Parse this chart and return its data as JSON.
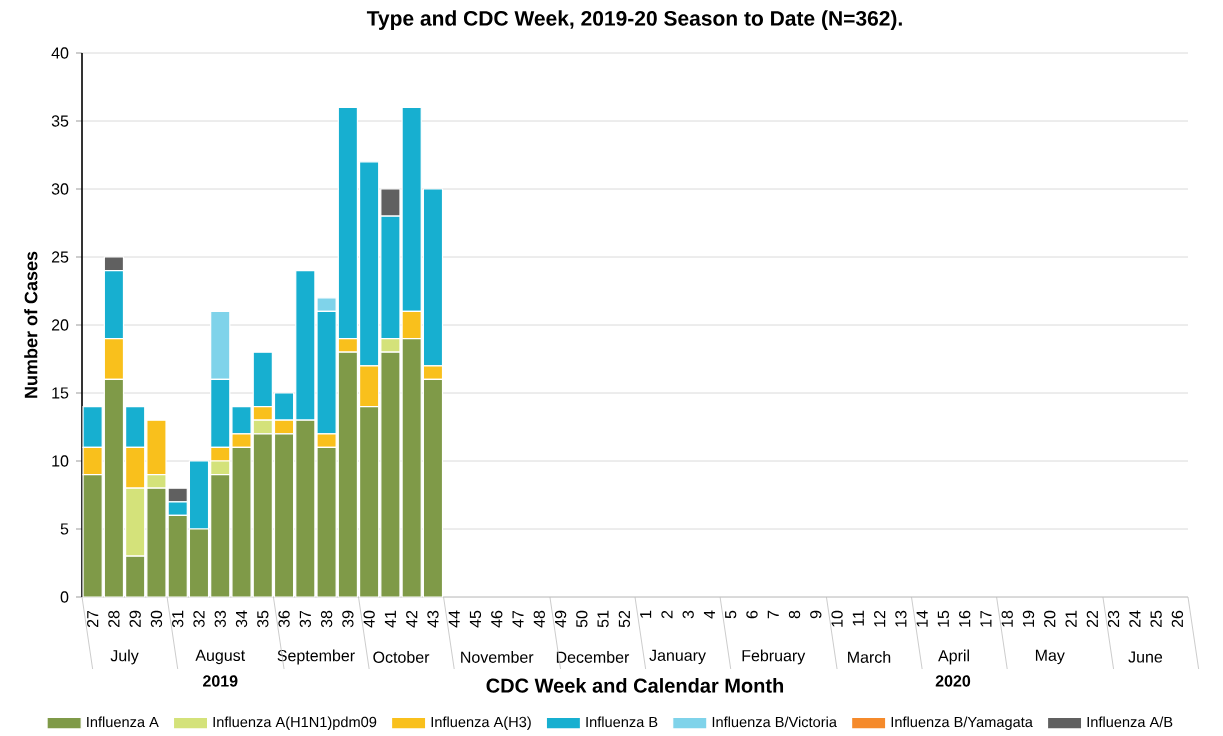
{
  "chart_data": {
    "type": "bar",
    "stacked": true,
    "title": "Type and CDC Week, 2019-20 Season to Date (N=362).",
    "xlabel": "CDC Week and Calendar Month",
    "ylabel": "Number of Cases",
    "categories": [
      "27",
      "28",
      "29",
      "30",
      "31",
      "32",
      "33",
      "34",
      "35",
      "36",
      "37",
      "38",
      "39",
      "40",
      "41",
      "42",
      "43",
      "44",
      "45",
      "46",
      "47",
      "48",
      "49",
      "50",
      "51",
      "52",
      "1",
      "2",
      "3",
      "4",
      "5",
      "6",
      "7",
      "8",
      "9",
      "10",
      "11",
      "12",
      "13",
      "14",
      "15",
      "16",
      "17",
      "18",
      "19",
      "20",
      "21",
      "22",
      "23",
      "24",
      "25",
      "26"
    ],
    "series": [
      {
        "name": "Influenza A",
        "color": "#7f9a48",
        "values": [
          9,
          16,
          3,
          8,
          6,
          5,
          9,
          11,
          12,
          12,
          13,
          11,
          18,
          14,
          18,
          19,
          16,
          null,
          null,
          null,
          null,
          null,
          null,
          null,
          null,
          null,
          null,
          null,
          null,
          null,
          null,
          null,
          null,
          null,
          null,
          null,
          null,
          null,
          null,
          null,
          null,
          null,
          null,
          null,
          null,
          null,
          null,
          null,
          null,
          null,
          null,
          null
        ]
      },
      {
        "name": "Influenza A(H1N1)pdm09",
        "color": "#d4e27a",
        "values": [
          0,
          0,
          5,
          1,
          0,
          0,
          1,
          0,
          1,
          0,
          0,
          0,
          0,
          0,
          1,
          0,
          0,
          null,
          null,
          null,
          null,
          null,
          null,
          null,
          null,
          null,
          null,
          null,
          null,
          null,
          null,
          null,
          null,
          null,
          null,
          null,
          null,
          null,
          null,
          null,
          null,
          null,
          null,
          null,
          null,
          null,
          null,
          null,
          null,
          null,
          null,
          null
        ]
      },
      {
        "name": "Influenza A(H3)",
        "color": "#f9c01c",
        "values": [
          2,
          3,
          3,
          4,
          0,
          0,
          1,
          1,
          1,
          1,
          0,
          1,
          1,
          3,
          0,
          2,
          1,
          null,
          null,
          null,
          null,
          null,
          null,
          null,
          null,
          null,
          null,
          null,
          null,
          null,
          null,
          null,
          null,
          null,
          null,
          null,
          null,
          null,
          null,
          null,
          null,
          null,
          null,
          null,
          null,
          null,
          null,
          null,
          null,
          null,
          null,
          null
        ]
      },
      {
        "name": "Influenza B",
        "color": "#17afd0",
        "values": [
          3,
          5,
          3,
          0,
          1,
          5,
          5,
          2,
          4,
          2,
          11,
          9,
          17,
          15,
          9,
          15,
          13,
          null,
          null,
          null,
          null,
          null,
          null,
          null,
          null,
          null,
          null,
          null,
          null,
          null,
          null,
          null,
          null,
          null,
          null,
          null,
          null,
          null,
          null,
          null,
          null,
          null,
          null,
          null,
          null,
          null,
          null,
          null,
          null,
          null,
          null,
          null
        ]
      },
      {
        "name": "Influenza B/Victoria",
        "color": "#7fd3ea",
        "values": [
          0,
          0,
          0,
          0,
          0,
          0,
          5,
          0,
          0,
          0,
          0,
          1,
          0,
          0,
          0,
          0,
          0,
          null,
          null,
          null,
          null,
          null,
          null,
          null,
          null,
          null,
          null,
          null,
          null,
          null,
          null,
          null,
          null,
          null,
          null,
          null,
          null,
          null,
          null,
          null,
          null,
          null,
          null,
          null,
          null,
          null,
          null,
          null,
          null,
          null,
          null,
          null
        ]
      },
      {
        "name": "Influenza B/Yamagata",
        "color": "#f58a2b",
        "values": [
          0,
          0,
          0,
          0,
          0,
          0,
          0,
          0,
          0,
          0,
          0,
          0,
          0,
          0,
          0,
          0,
          0,
          null,
          null,
          null,
          null,
          null,
          null,
          null,
          null,
          null,
          null,
          null,
          null,
          null,
          null,
          null,
          null,
          null,
          null,
          null,
          null,
          null,
          null,
          null,
          null,
          null,
          null,
          null,
          null,
          null,
          null,
          null,
          null,
          null,
          null,
          null
        ]
      },
      {
        "name": "Influenza A/B",
        "color": "#606060",
        "values": [
          0,
          1,
          0,
          0,
          1,
          0,
          0,
          0,
          0,
          0,
          0,
          0,
          0,
          0,
          2,
          0,
          0,
          null,
          null,
          null,
          null,
          null,
          null,
          null,
          null,
          null,
          null,
          null,
          null,
          null,
          null,
          null,
          null,
          null,
          null,
          null,
          null,
          null,
          null,
          null,
          null,
          null,
          null,
          null,
          null,
          null,
          null,
          null,
          null,
          null,
          null,
          null
        ]
      }
    ],
    "ylim": [
      0,
      40
    ],
    "yticks": [
      0,
      5,
      10,
      15,
      20,
      25,
      30,
      35,
      40
    ],
    "grid": "y",
    "legend": "bottom",
    "annotations": [
      {
        "text": "July"
      },
      {
        "text": "August"
      },
      {
        "text": "September"
      },
      {
        "text": "October"
      },
      {
        "text": "November"
      },
      {
        "text": "December"
      },
      {
        "text": "January"
      },
      {
        "text": "February"
      },
      {
        "text": "March"
      },
      {
        "text": "April"
      },
      {
        "text": "May"
      },
      {
        "text": "June"
      },
      "2019",
      "2020"
    ]
  }
}
